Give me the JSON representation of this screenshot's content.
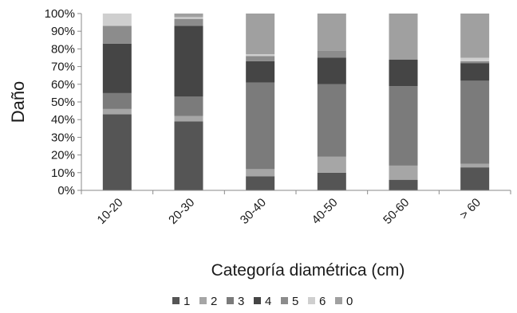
{
  "chart_data": {
    "type": "bar",
    "stacked": true,
    "percent": true,
    "categories": [
      "10-20",
      "20-30",
      "30-40",
      "40-50",
      "50-60",
      "> 60"
    ],
    "ylabel": "Daño",
    "xlabel": "Categoría diamétrica (cm)",
    "ylim": [
      0,
      100
    ],
    "y_ticks": [
      "0%",
      "10%",
      "20%",
      "30%",
      "40%",
      "50%",
      "60%",
      "70%",
      "80%",
      "90%",
      "100%"
    ],
    "legend_position": "bottom",
    "grid": false,
    "series": [
      {
        "name": "1",
        "color": "#555555",
        "values": [
          43,
          39,
          8,
          10,
          6,
          13
        ]
      },
      {
        "name": "2",
        "color": "#a6a6a6",
        "values": [
          3,
          3,
          4,
          9,
          8,
          2
        ]
      },
      {
        "name": "3",
        "color": "#7b7b7b",
        "values": [
          9,
          11,
          49,
          41,
          45,
          47
        ]
      },
      {
        "name": "4",
        "color": "#454545",
        "values": [
          28,
          40,
          12,
          15,
          15,
          10
        ]
      },
      {
        "name": "5",
        "color": "#8c8c8c",
        "values": [
          10,
          4,
          3,
          4,
          0,
          1
        ]
      },
      {
        "name": "6",
        "color": "#cfcfcf",
        "values": [
          7,
          1,
          1,
          0,
          0,
          2
        ]
      },
      {
        "name": "0",
        "color": "#a0a0a0",
        "values": [
          0,
          2,
          23,
          21,
          26,
          25
        ]
      }
    ]
  }
}
